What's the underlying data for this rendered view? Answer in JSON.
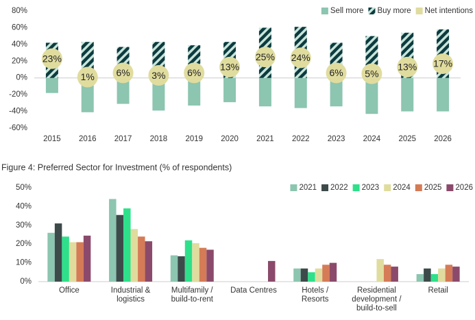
{
  "chart_data": [
    {
      "type": "bar",
      "categories": [
        "2015",
        "2016",
        "2017",
        "2018",
        "2019",
        "2020",
        "2021",
        "2022",
        "2023",
        "2024",
        "2025",
        "2026"
      ],
      "series": [
        {
          "name": "Sell more",
          "color": "#8cc5b0",
          "values": [
            -18,
            -41,
            -31,
            -39,
            -33,
            -29,
            -34,
            -36,
            -34,
            -43,
            -40,
            -40
          ]
        },
        {
          "name": "Buy more",
          "color": "#0d3b3f",
          "hatch": true,
          "values": [
            42,
            43,
            37,
            43,
            39,
            43,
            60,
            61,
            42,
            50,
            54,
            58
          ]
        },
        {
          "name": "Net intentions",
          "color": "#e0dc9e",
          "type": "scatter",
          "values": [
            23,
            1,
            6,
            3,
            6,
            13,
            25,
            24,
            6,
            5,
            13,
            17
          ],
          "value_labels": [
            "23%",
            "1%",
            "6%",
            "3%",
            "6%",
            "13%",
            "25%",
            "24%",
            "6%",
            "5%",
            "13%",
            "17%"
          ]
        }
      ],
      "ylim": [
        -60,
        80
      ],
      "yticks": [
        {
          "value": -60,
          "label": "-60%"
        },
        {
          "value": -40,
          "label": "-40%"
        },
        {
          "value": -20,
          "label": "-20%"
        },
        {
          "value": 0,
          "label": "0%"
        },
        {
          "value": 20,
          "label": "20%"
        },
        {
          "value": 40,
          "label": "40%"
        },
        {
          "value": 60,
          "label": "60%"
        },
        {
          "value": 80,
          "label": "80%"
        }
      ],
      "grid": false,
      "legend": "top-right"
    },
    {
      "type": "bar",
      "title": "Figure 4: Preferred Sector for Investment (% of respondents)",
      "categories": [
        "Office",
        "Industrial & logistics",
        "Multifamily / build-to-rent",
        "Data Centres",
        "Hotels / Resorts",
        "Residential development / build-to-sell",
        "Retail"
      ],
      "series": [
        {
          "name": "2021",
          "color": "#8cc5b0",
          "values": [
            26,
            44,
            14,
            null,
            7,
            null,
            4
          ]
        },
        {
          "name": "2022",
          "color": "#3d4a4a",
          "values": [
            31,
            35.5,
            13.5,
            null,
            7,
            null,
            7
          ]
        },
        {
          "name": "2023",
          "color": "#2ee08a",
          "values": [
            24,
            39,
            22,
            null,
            5,
            null,
            4
          ]
        },
        {
          "name": "2024",
          "color": "#e0dc9e",
          "values": [
            21,
            28,
            20.5,
            null,
            7,
            12,
            7
          ]
        },
        {
          "name": "2025",
          "color": "#d57b56",
          "values": [
            21,
            24,
            18,
            null,
            9,
            9,
            9
          ]
        },
        {
          "name": "2026",
          "color": "#8b4a6b",
          "values": [
            24.5,
            21.5,
            17,
            11,
            10,
            8,
            8
          ]
        }
      ],
      "ylim": [
        0,
        50
      ],
      "yticks": [
        {
          "value": 0,
          "label": "0%"
        },
        {
          "value": 10,
          "label": "10%"
        },
        {
          "value": 20,
          "label": "20%"
        },
        {
          "value": 30,
          "label": "30%"
        },
        {
          "value": 40,
          "label": "40%"
        },
        {
          "value": 50,
          "label": "50%"
        }
      ],
      "grid": false,
      "legend": "top-right"
    }
  ]
}
